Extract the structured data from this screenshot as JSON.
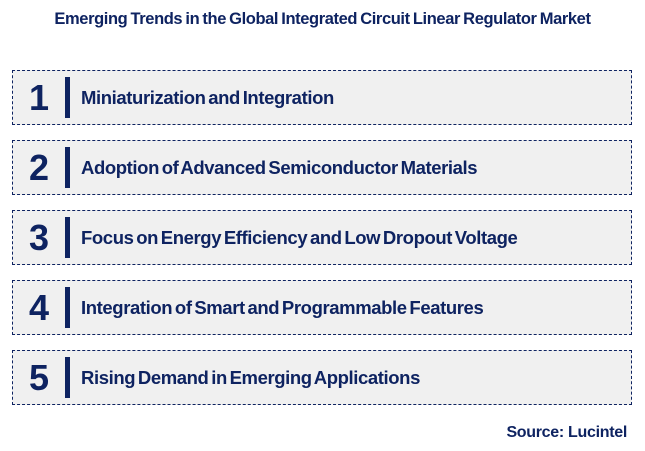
{
  "title": "Emerging Trends in the Global Integrated Circuit Linear Regulator Market",
  "trends": [
    {
      "number": "1",
      "label": "Miniaturization and Integration"
    },
    {
      "number": "2",
      "label": "Adoption of Advanced Semiconductor Materials"
    },
    {
      "number": "3",
      "label": "Focus on Energy Efficiency and Low Dropout Voltage"
    },
    {
      "number": "4",
      "label": "Integration of Smart and Programmable Features"
    },
    {
      "number": "5",
      "label": "Rising Demand in Emerging Applications"
    }
  ],
  "source": "Source: Lucintel",
  "colors": {
    "navy": "#0e2361",
    "row_background": "#f0f0f0",
    "page_background": "#ffffff"
  }
}
